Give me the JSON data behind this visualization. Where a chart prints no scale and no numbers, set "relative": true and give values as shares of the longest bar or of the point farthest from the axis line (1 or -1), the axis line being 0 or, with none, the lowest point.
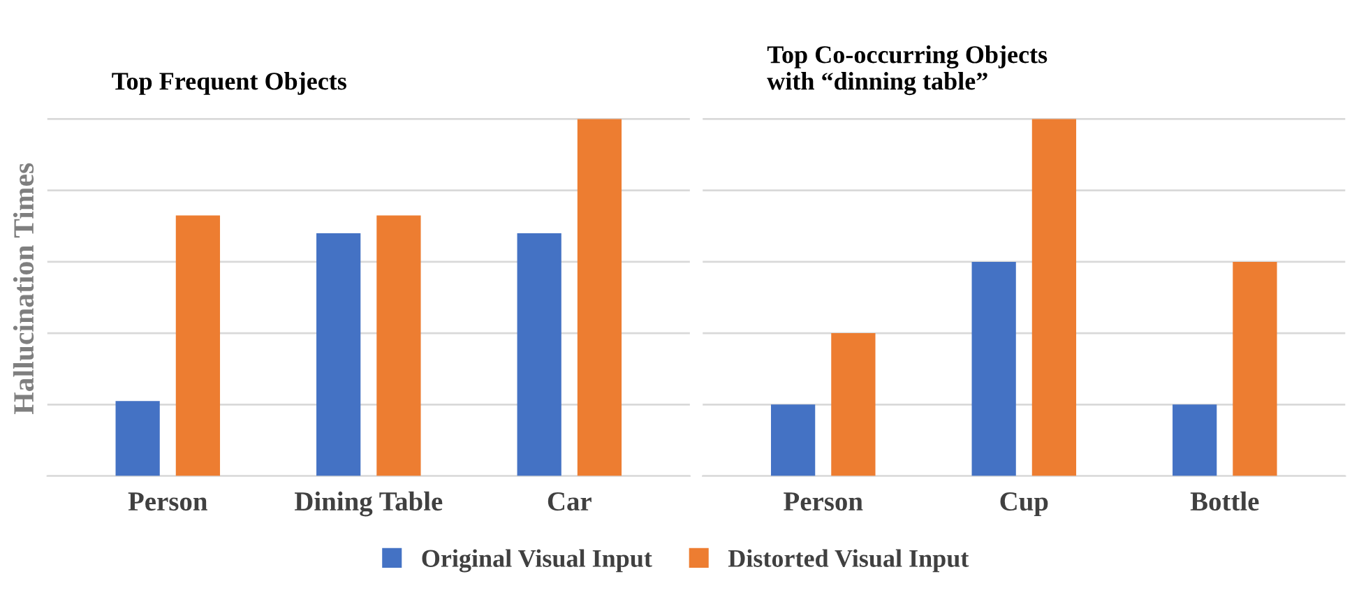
{
  "chart_data": [
    {
      "type": "bar",
      "title": "Top Frequent Objects",
      "ylabel": "Hallucination Times",
      "categories": [
        "Person",
        "Dining Table",
        "Car"
      ],
      "relative": true,
      "grid": "y",
      "legend": "bottom",
      "series": [
        {
          "name": "Original Visual Input",
          "color": "#4472c4",
          "values": [
            0.21,
            0.68,
            0.68
          ]
        },
        {
          "name": "Distorted Visual Input",
          "color": "#ed7d31",
          "values": [
            0.73,
            0.73,
            1
          ]
        }
      ]
    },
    {
      "type": "bar",
      "title": "Top Co-occurring Objects\nwith “dinning table”",
      "categories": [
        "Person",
        "Cup",
        "Bottle"
      ],
      "relative": true,
      "grid": "y",
      "series": [
        {
          "color": "#4472c4",
          "values": [
            0.2,
            0.6,
            0.2
          ]
        },
        {
          "color": "#ed7d31",
          "values": [
            0.4,
            1,
            0.6
          ]
        }
      ]
    }
  ]
}
